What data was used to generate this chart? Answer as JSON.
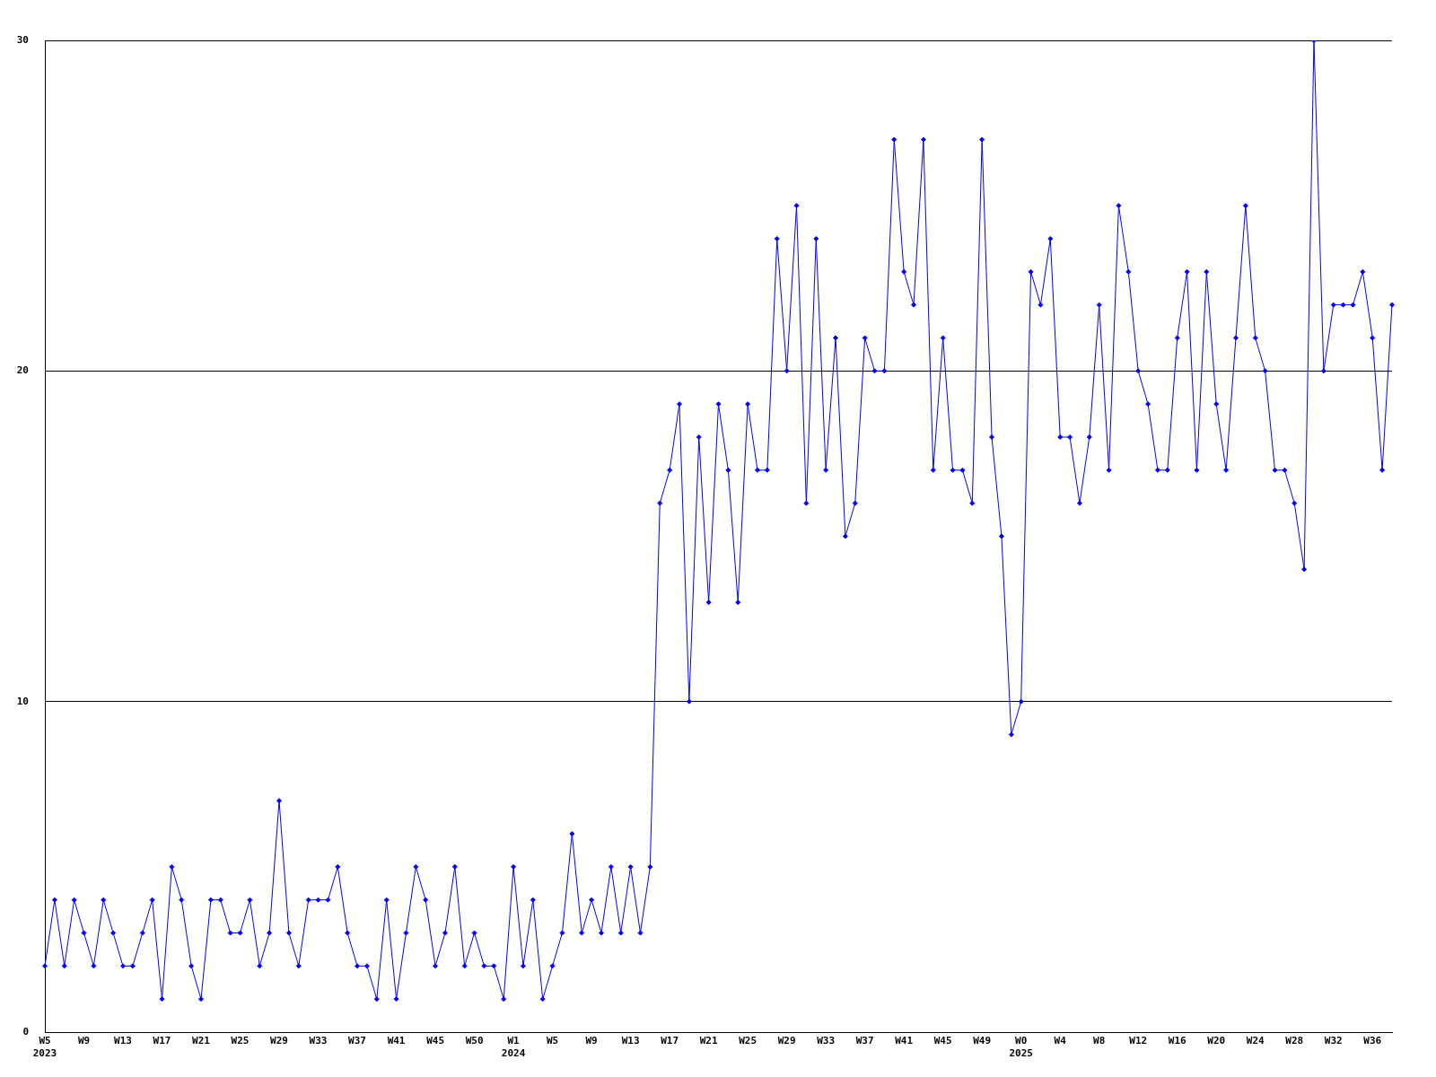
{
  "chart_data": {
    "type": "line",
    "categories": [
      "W5\n2023",
      null,
      null,
      null,
      "W9",
      null,
      null,
      null,
      "W13",
      null,
      null,
      null,
      "W17",
      null,
      null,
      null,
      "W21",
      null,
      null,
      null,
      "W25",
      null,
      null,
      null,
      "W29",
      null,
      null,
      null,
      "W33",
      null,
      null,
      null,
      "W37",
      null,
      null,
      null,
      "W41",
      null,
      null,
      null,
      "W45",
      null,
      null,
      null,
      "W50",
      null,
      null,
      null,
      "W1\n2024",
      null,
      null,
      null,
      "W5",
      null,
      null,
      null,
      "W9",
      null,
      null,
      null,
      "W13",
      null,
      null,
      null,
      "W17",
      null,
      null,
      null,
      "W21",
      null,
      null,
      null,
      "W25",
      null,
      null,
      null,
      "W29",
      null,
      null,
      null,
      "W33",
      null,
      null,
      null,
      "W37",
      null,
      null,
      null,
      "W41",
      null,
      null,
      null,
      "W45",
      null,
      null,
      null,
      "W49",
      null,
      null,
      null,
      "W0\n2025",
      null,
      null,
      null,
      "W4",
      null,
      null,
      null,
      "W8",
      null,
      null,
      null,
      "W12",
      null,
      null,
      null,
      "W16",
      null,
      null,
      null,
      "W20",
      null,
      null,
      null,
      "W24",
      null,
      null,
      null,
      "W28",
      null,
      null,
      null,
      "W32",
      null,
      null,
      null,
      "W36",
      null,
      null
    ],
    "series": [
      {
        "color": "#0000ff",
        "values": [
          2,
          4,
          2,
          4,
          3,
          2,
          4,
          3,
          2,
          2,
          3,
          4,
          1,
          5,
          4,
          2,
          1,
          4,
          4,
          3,
          3,
          4,
          2,
          3,
          7,
          3,
          2,
          4,
          4,
          4,
          5,
          3,
          2,
          2,
          1,
          4,
          1,
          3,
          5,
          4,
          2,
          3,
          5,
          2,
          3,
          2,
          2,
          1,
          5,
          2,
          4,
          1,
          2,
          3,
          6,
          3,
          4,
          3,
          5,
          3,
          5,
          3,
          5,
          16,
          17,
          19,
          10,
          18,
          13,
          19,
          17,
          13,
          19,
          17,
          17,
          24,
          20,
          25,
          16,
          24,
          17,
          21,
          15,
          16,
          21,
          20,
          20,
          27,
          23,
          22,
          27,
          17,
          21,
          17,
          17,
          16,
          27,
          18,
          15,
          9,
          10,
          23,
          22,
          24,
          18,
          18,
          16,
          18,
          22,
          17,
          25,
          23,
          20,
          19,
          17,
          17,
          21,
          23,
          17,
          23,
          19,
          17,
          21,
          25,
          21,
          20,
          17,
          17,
          16,
          14,
          30,
          20,
          22,
          22,
          22,
          23,
          21,
          17,
          22
        ]
      }
    ],
    "ylim": [
      0,
      30
    ],
    "yticks": [
      0,
      10,
      20,
      30
    ],
    "grid": "y",
    "marker": "diamond",
    "line_style": "solid"
  }
}
